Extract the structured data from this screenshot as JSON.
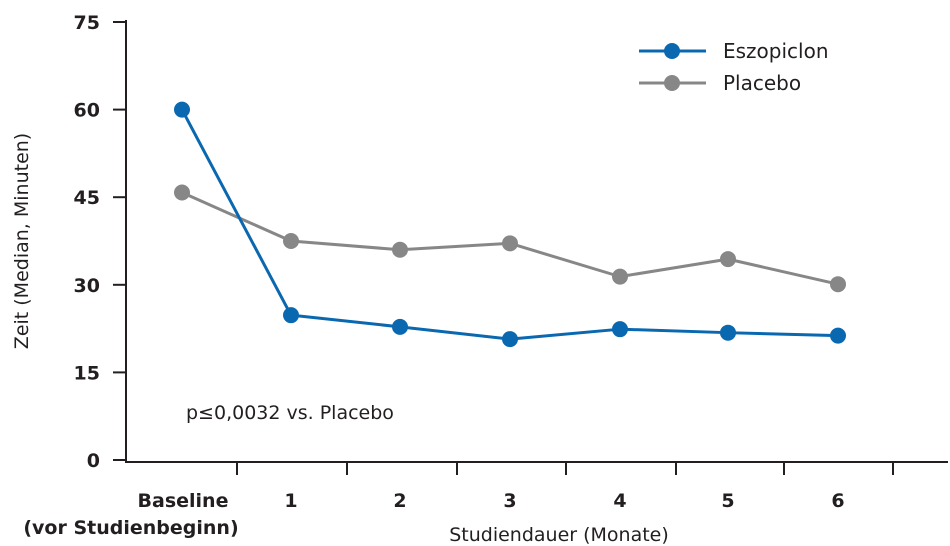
{
  "chart_data": {
    "type": "line",
    "title": "",
    "xlabel": "Studiendauer (Monate)",
    "ylabel": "Zeit (Median, Minuten)",
    "categories": [
      "Baseline",
      "1",
      "2",
      "3",
      "4",
      "5",
      "6"
    ],
    "category_sublabel": "(vor Studienbeginn)",
    "ylim": [
      0,
      75
    ],
    "yticks": [
      "0",
      "15",
      "30",
      "45",
      "60",
      "75"
    ],
    "grid": false,
    "legend_position": "top-right",
    "series": [
      {
        "name": "Eszopiclon",
        "color": "#0a68b0",
        "values": [
          60,
          24.8,
          22.8,
          20.7,
          22.4,
          21.8,
          21.3
        ]
      },
      {
        "name": "Placebo",
        "color": "#878787",
        "values": [
          45.8,
          37.5,
          36,
          37.1,
          31.4,
          34.4,
          30.1
        ]
      }
    ],
    "annotations": [
      "p≤0,0032 vs. Placebo"
    ]
  }
}
